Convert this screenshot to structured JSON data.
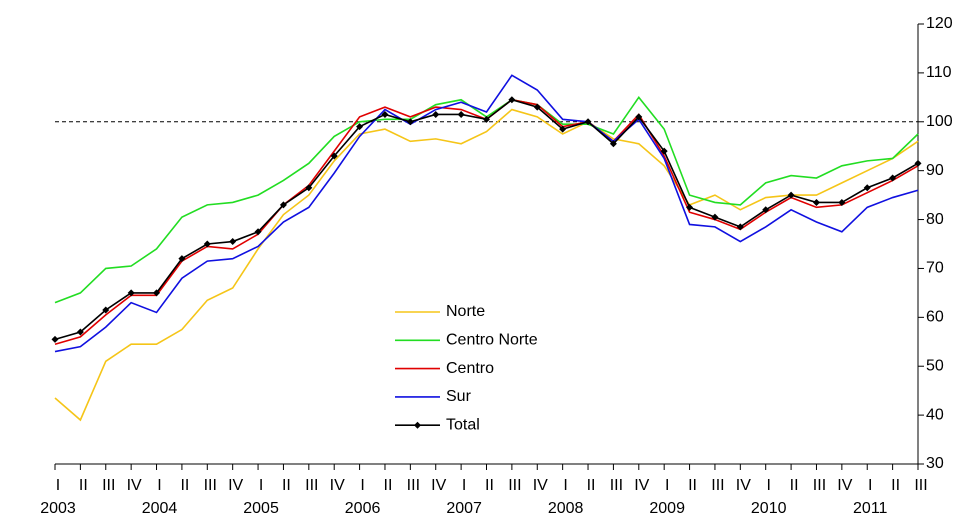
{
  "chart_data": {
    "type": "line",
    "categories": [
      "I",
      "II",
      "III",
      "IV",
      "I",
      "II",
      "III",
      "IV",
      "I",
      "II",
      "III",
      "IV",
      "I",
      "II",
      "III",
      "IV",
      "I",
      "II",
      "III",
      "IV",
      "I",
      "II",
      "III",
      "IV",
      "I",
      "II",
      "III",
      "IV",
      "I",
      "II",
      "III",
      "IV",
      "I",
      "II",
      "III"
    ],
    "years": [
      "2003",
      "2004",
      "2005",
      "2006",
      "2007",
      "2008",
      "2009",
      "2010",
      "2011"
    ],
    "series": [
      {
        "name": "Norte",
        "color": "#f5c518",
        "values": [
          43.5,
          39,
          51,
          54.5,
          54.5,
          57.5,
          63.5,
          66,
          74,
          81,
          85,
          92,
          97.5,
          98.5,
          96,
          96.5,
          95.5,
          98,
          102.5,
          101,
          97.5,
          100,
          96.5,
          95.5,
          91,
          83,
          85,
          82,
          84.5,
          85,
          85,
          87.5,
          90,
          92.5,
          96
        ]
      },
      {
        "name": "Centro Norte",
        "color": "#22dd22",
        "values": [
          63,
          65,
          70,
          70.5,
          74,
          80.5,
          83,
          83.5,
          85,
          88,
          91.5,
          97,
          100,
          100.5,
          100.5,
          103.5,
          104.5,
          101,
          104.5,
          103.5,
          99.5,
          99.5,
          97.5,
          105,
          98.5,
          85,
          83.5,
          83,
          87.5,
          89,
          88.5,
          91,
          92,
          92.5,
          97.5
        ]
      },
      {
        "name": "Centro",
        "color": "#e00000",
        "values": [
          54.5,
          56,
          60.5,
          64.5,
          64.5,
          71.5,
          74.5,
          74,
          77,
          83,
          87,
          94,
          101,
          103,
          101,
          103,
          102.5,
          100.5,
          104.5,
          103.5,
          99,
          100,
          96,
          101.5,
          93,
          81.5,
          80,
          78,
          81.5,
          84.5,
          82.5,
          83,
          85.5,
          88,
          91
        ]
      },
      {
        "name": "Sur",
        "color": "#1010e0",
        "values": [
          53,
          54,
          58,
          63,
          61,
          68,
          71.5,
          72,
          74.5,
          79.5,
          82.5,
          89.5,
          97,
          102.5,
          99.5,
          102.5,
          104,
          102,
          109.5,
          106.5,
          100.5,
          100,
          96,
          100.5,
          92.5,
          79,
          78.5,
          75.5,
          78.5,
          82,
          79.5,
          77.5,
          82.5,
          84.5,
          86
        ]
      },
      {
        "name": "Total",
        "color": "#000000",
        "markers": true,
        "values": [
          55.5,
          57,
          61.5,
          65,
          65,
          72,
          75,
          75.5,
          77.5,
          83,
          86.5,
          93,
          99,
          101.5,
          100,
          101.5,
          101.5,
          100.5,
          104.5,
          103,
          98.5,
          100,
          95.5,
          101,
          94,
          82.5,
          80.5,
          78.5,
          82,
          85,
          83.5,
          83.5,
          86.5,
          88.5,
          91.5
        ]
      }
    ],
    "reference_line": 100,
    "ylim": [
      30,
      120
    ],
    "yticks": [
      30,
      40,
      50,
      60,
      70,
      80,
      90,
      100,
      110,
      120
    ]
  }
}
